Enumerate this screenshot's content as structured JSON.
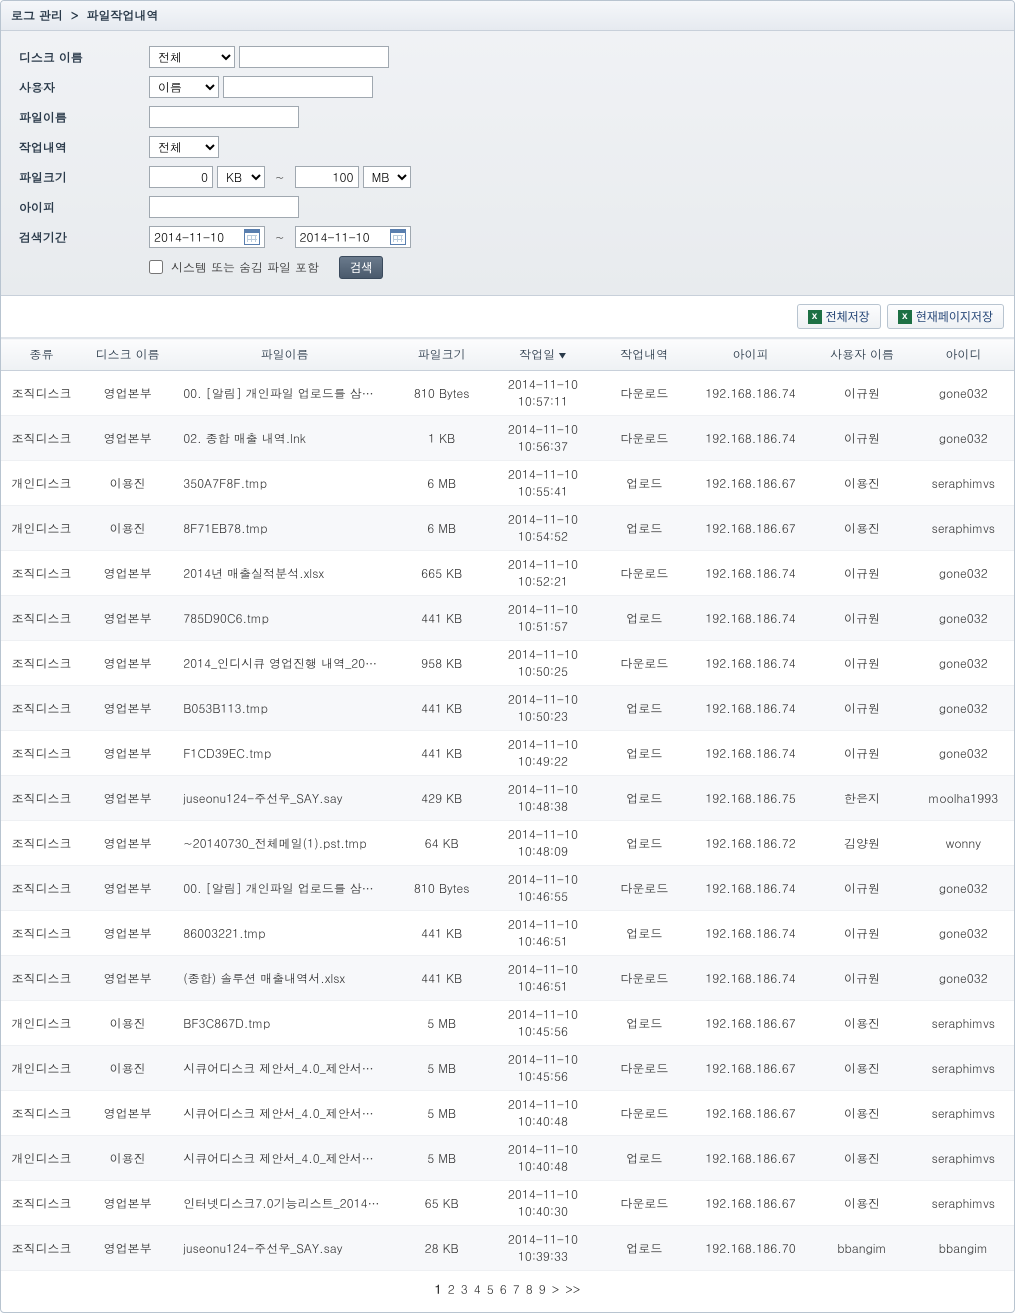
{
  "breadcrumb": {
    "root": "로그 관리",
    "page": "파일작업내역"
  },
  "search": {
    "labels": {
      "disk": "디스크 이름",
      "user": "사용자",
      "filename": "파일이름",
      "action": "작업내역",
      "filesize": "파일크기",
      "ip": "아이피",
      "period": "검색기간"
    },
    "disk_select": "전체",
    "disk_text": "",
    "user_select": "이름",
    "user_text": "",
    "filename": "",
    "action_select": "전체",
    "size_from": "0",
    "size_from_unit": "KB",
    "size_to": "100",
    "size_to_unit": "MB",
    "ip": "",
    "date_from": "2014-11-10",
    "date_to": "2014-11-10",
    "include_hidden_label": "시스템 또는 숨김 파일 포함",
    "search_button": "검색"
  },
  "export": {
    "all": "전체저장",
    "page": "현재페이지저장"
  },
  "grid": {
    "columns": {
      "type": "종류",
      "disk": "디스크 이름",
      "filename": "파일이름",
      "size": "파일크기",
      "date": "작업일",
      "action": "작업내역",
      "ip": "아이피",
      "username": "사용자 이름",
      "userid": "아이디"
    },
    "sort_indicator": "▼",
    "rows": [
      {
        "type": "조직디스크",
        "disk": "영업본부",
        "filename": "00. [알림] 개인파일 업로드를 삼…",
        "size": "810 Bytes",
        "date": "2014-11-10 10:57:11",
        "action": "다운로드",
        "ip": "192.168.186.74",
        "username": "이규원",
        "userid": "gone032"
      },
      {
        "type": "조직디스크",
        "disk": "영업본부",
        "filename": "02. 종합 매출 내역.lnk",
        "size": "1 KB",
        "date": "2014-11-10 10:56:37",
        "action": "다운로드",
        "ip": "192.168.186.74",
        "username": "이규원",
        "userid": "gone032"
      },
      {
        "type": "개인디스크",
        "disk": "이용진",
        "filename": "350A7F8F.tmp",
        "size": "6 MB",
        "date": "2014-11-10 10:55:41",
        "action": "업로드",
        "ip": "192.168.186.67",
        "username": "이용진",
        "userid": "seraphimvs"
      },
      {
        "type": "개인디스크",
        "disk": "이용진",
        "filename": "8F71EB78.tmp",
        "size": "6 MB",
        "date": "2014-11-10 10:54:52",
        "action": "업로드",
        "ip": "192.168.186.67",
        "username": "이용진",
        "userid": "seraphimvs"
      },
      {
        "type": "조직디스크",
        "disk": "영업본부",
        "filename": "2014년 매출실적분석.xlsx",
        "size": "665 KB",
        "date": "2014-11-10 10:52:21",
        "action": "다운로드",
        "ip": "192.168.186.74",
        "username": "이규원",
        "userid": "gone032"
      },
      {
        "type": "조직디스크",
        "disk": "영업본부",
        "filename": "785D90C6.tmp",
        "size": "441 KB",
        "date": "2014-11-10 10:51:57",
        "action": "업로드",
        "ip": "192.168.186.74",
        "username": "이규원",
        "userid": "gone032"
      },
      {
        "type": "조직디스크",
        "disk": "영업본부",
        "filename": "2014_인디시큐 영업진행 내역_20…",
        "size": "958 KB",
        "date": "2014-11-10 10:50:25",
        "action": "다운로드",
        "ip": "192.168.186.74",
        "username": "이규원",
        "userid": "gone032"
      },
      {
        "type": "조직디스크",
        "disk": "영업본부",
        "filename": "B053B113.tmp",
        "size": "441 KB",
        "date": "2014-11-10 10:50:23",
        "action": "업로드",
        "ip": "192.168.186.74",
        "username": "이규원",
        "userid": "gone032"
      },
      {
        "type": "조직디스크",
        "disk": "영업본부",
        "filename": "F1CD39EC.tmp",
        "size": "441 KB",
        "date": "2014-11-10 10:49:22",
        "action": "업로드",
        "ip": "192.168.186.74",
        "username": "이규원",
        "userid": "gone032"
      },
      {
        "type": "조직디스크",
        "disk": "영업본부",
        "filename": "juseonu124-주선우_SAY.say",
        "size": "429 KB",
        "date": "2014-11-10 10:48:38",
        "action": "업로드",
        "ip": "192.168.186.75",
        "username": "한은지",
        "userid": "moolha1993"
      },
      {
        "type": "조직디스크",
        "disk": "영업본부",
        "filename": "~20140730_전체메일(1).pst.tmp",
        "size": "64 KB",
        "date": "2014-11-10 10:48:09",
        "action": "업로드",
        "ip": "192.168.186.72",
        "username": "김양원",
        "userid": "wonny"
      },
      {
        "type": "조직디스크",
        "disk": "영업본부",
        "filename": "00. [알림] 개인파일 업로드를 삼…",
        "size": "810 Bytes",
        "date": "2014-11-10 10:46:55",
        "action": "다운로드",
        "ip": "192.168.186.74",
        "username": "이규원",
        "userid": "gone032"
      },
      {
        "type": "조직디스크",
        "disk": "영업본부",
        "filename": "86003221.tmp",
        "size": "441 KB",
        "date": "2014-11-10 10:46:51",
        "action": "업로드",
        "ip": "192.168.186.74",
        "username": "이규원",
        "userid": "gone032"
      },
      {
        "type": "조직디스크",
        "disk": "영업본부",
        "filename": "(종합) 솔루션 매출내역서.xlsx",
        "size": "441 KB",
        "date": "2014-11-10 10:46:51",
        "action": "다운로드",
        "ip": "192.168.186.74",
        "username": "이규원",
        "userid": "gone032"
      },
      {
        "type": "개인디스크",
        "disk": "이용진",
        "filename": "BF3C867D.tmp",
        "size": "5 MB",
        "date": "2014-11-10 10:45:56",
        "action": "업로드",
        "ip": "192.168.186.67",
        "username": "이용진",
        "userid": "seraphimvs"
      },
      {
        "type": "개인디스크",
        "disk": "이용진",
        "filename": "시큐어디스크 제안서_4.0_제안서…",
        "size": "5 MB",
        "date": "2014-11-10 10:45:56",
        "action": "다운로드",
        "ip": "192.168.186.67",
        "username": "이용진",
        "userid": "seraphimvs"
      },
      {
        "type": "조직디스크",
        "disk": "영업본부",
        "filename": "시큐어디스크 제안서_4.0_제안서…",
        "size": "5 MB",
        "date": "2014-11-10 10:40:48",
        "action": "다운로드",
        "ip": "192.168.186.67",
        "username": "이용진",
        "userid": "seraphimvs"
      },
      {
        "type": "개인디스크",
        "disk": "이용진",
        "filename": "시큐어디스크 제안서_4.0_제안서…",
        "size": "5 MB",
        "date": "2014-11-10 10:40:48",
        "action": "업로드",
        "ip": "192.168.186.67",
        "username": "이용진",
        "userid": "seraphimvs"
      },
      {
        "type": "조직디스크",
        "disk": "영업본부",
        "filename": "인터넷디스크7.0기능리스트_2014…",
        "size": "65 KB",
        "date": "2014-11-10 10:40:30",
        "action": "다운로드",
        "ip": "192.168.186.67",
        "username": "이용진",
        "userid": "seraphimvs"
      },
      {
        "type": "조직디스크",
        "disk": "영업본부",
        "filename": "juseonu124-주선우_SAY.say",
        "size": "28 KB",
        "date": "2014-11-10 10:39:33",
        "action": "업로드",
        "ip": "192.168.186.70",
        "username": "bbangim",
        "userid": "bbangim"
      }
    ]
  },
  "pagination": {
    "pages": [
      "1",
      "2",
      "3",
      "4",
      "5",
      "6",
      "7",
      "8",
      "9"
    ],
    "current": 1,
    "next": ">",
    "last": ">>"
  }
}
